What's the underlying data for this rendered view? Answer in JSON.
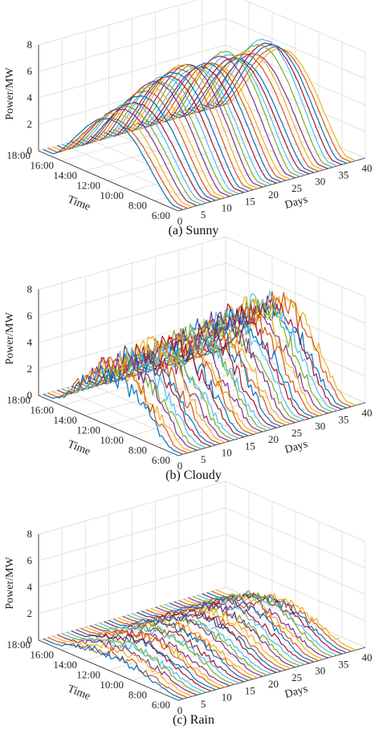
{
  "palette": [
    "#0072BD",
    "#D95319",
    "#EDB120",
    "#7E2F8E",
    "#77AC30",
    "#4DBEEE",
    "#A2142F"
  ],
  "chart_data": [
    {
      "type": "line",
      "caption": "(a) Sunny",
      "xlabel": "Days",
      "ylabel": "Time",
      "zlabel": "Power/MW",
      "xticks": [
        "0",
        "5",
        "10",
        "15",
        "20",
        "25",
        "30",
        "35",
        "40"
      ],
      "yticks": [
        "6:00",
        "8:00",
        "10:00",
        "12:00",
        "14:00",
        "16:00",
        "18:00"
      ],
      "zticks": [
        "0",
        "2",
        "4",
        "6",
        "8"
      ],
      "xlim": [
        0,
        40
      ],
      "ylim_hours": [
        6,
        18
      ],
      "zlim": [
        0,
        8
      ],
      "grid": true,
      "series_count": 38,
      "daily_peak_mw": [
        4.5,
        4.4,
        4.7,
        4.9,
        5.0,
        5.2,
        5.1,
        5.5,
        5.8,
        6.0,
        6.3,
        6.2,
        6.5,
        6.4,
        6.6,
        6.8,
        7.0,
        6.9,
        6.7,
        6.5,
        6.4,
        6.6,
        6.5,
        6.3,
        6.8,
        7.1,
        6.7,
        6.4,
        6.2,
        6.5,
        6.6,
        6.3,
        6.9,
        7.2,
        6.8,
        6.6,
        6.3,
        6.1
      ],
      "noise_mw": 0.05
    },
    {
      "type": "line",
      "caption": "(b) Cloudy",
      "xlabel": "Days",
      "ylabel": "Time",
      "zlabel": "Power/MW",
      "xticks": [
        "0",
        "5",
        "10",
        "15",
        "20",
        "25",
        "30",
        "35",
        "40"
      ],
      "yticks": [
        "6:00",
        "8:00",
        "10:00",
        "12:00",
        "14:00",
        "16:00",
        "18:00"
      ],
      "zticks": [
        "0",
        "2",
        "4",
        "6",
        "8"
      ],
      "xlim": [
        0,
        40
      ],
      "ylim_hours": [
        6,
        18
      ],
      "zlim": [
        0,
        8
      ],
      "grid": true,
      "series_count": 38,
      "daily_peak_mw": [
        3.8,
        4.2,
        4.0,
        4.5,
        3.9,
        4.3,
        4.6,
        4.1,
        4.4,
        4.8,
        4.2,
        4.5,
        4.0,
        4.7,
        4.3,
        4.9,
        4.4,
        4.6,
        5.0,
        4.5,
        4.8,
        5.2,
        4.7,
        5.0,
        5.4,
        4.9,
        5.3,
        5.6,
        5.1,
        5.5,
        5.8,
        5.2,
        5.6,
        6.0,
        5.4,
        5.1,
        5.7,
        5.2
      ],
      "noise_mw": 0.9
    },
    {
      "type": "line",
      "caption": "(c) Rain",
      "xlabel": "Days",
      "ylabel": "Time",
      "zlabel": "Power/MW",
      "xticks": [
        "0",
        "5",
        "10",
        "15",
        "20",
        "25",
        "30",
        "35",
        "40"
      ],
      "yticks": [
        "6:00",
        "8:00",
        "10:00",
        "12:00",
        "14:00",
        "16:00",
        "18:00"
      ],
      "zticks": [
        "0",
        "2",
        "4",
        "6",
        "8"
      ],
      "xlim": [
        0,
        40
      ],
      "ylim_hours": [
        6,
        18
      ],
      "zlim": [
        0,
        8
      ],
      "grid": true,
      "series_count": 38,
      "daily_peak_mw": [
        1.0,
        0.9,
        1.2,
        1.1,
        1.3,
        1.0,
        1.4,
        1.2,
        1.5,
        1.3,
        1.2,
        1.6,
        1.4,
        1.3,
        1.7,
        1.5,
        1.4,
        1.8,
        1.6,
        1.5,
        1.9,
        1.7,
        1.6,
        1.8,
        2.0,
        1.7,
        1.9,
        1.8,
        2.1,
        1.9,
        2.0,
        1.8,
        2.2,
        1.9,
        1.7,
        1.6,
        1.5,
        1.4
      ],
      "noise_mw": 0.35
    }
  ]
}
